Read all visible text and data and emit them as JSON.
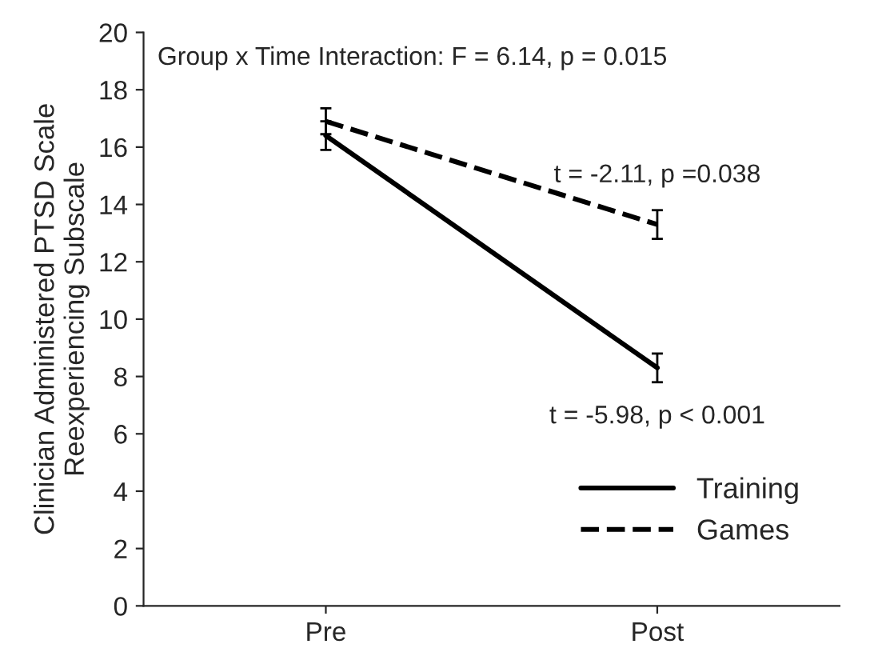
{
  "chart_data": {
    "type": "line",
    "ylabel": "Clinician Administered PTSD Scale\nReexperiencing Subscale",
    "categories": [
      "Pre",
      "Post"
    ],
    "series": [
      {
        "name": "Training",
        "color": "#000000",
        "line_style": "solid",
        "values": [
          16.4,
          8.3
        ],
        "errors": [
          0.5,
          0.5
        ]
      },
      {
        "name": "Games",
        "color": "#000000",
        "line_style": "dashed",
        "values": [
          16.9,
          13.3
        ],
        "errors": [
          0.45,
          0.5
        ]
      }
    ],
    "ylim": [
      0,
      20
    ],
    "yticks": [
      0,
      2,
      4,
      6,
      8,
      10,
      12,
      14,
      16,
      18,
      20
    ],
    "grid": false,
    "legend": "bottom right",
    "marker": "none",
    "annotations": [
      "Group x Time Interaction: F = 6.14, p = 0.015",
      {
        "text": "t = -2.11, p =0.038",
        "x": "Post",
        "y": 13.3
      },
      {
        "text": "t = -5.98, p < 0.001",
        "x": "Post",
        "y": 8.3
      }
    ]
  }
}
